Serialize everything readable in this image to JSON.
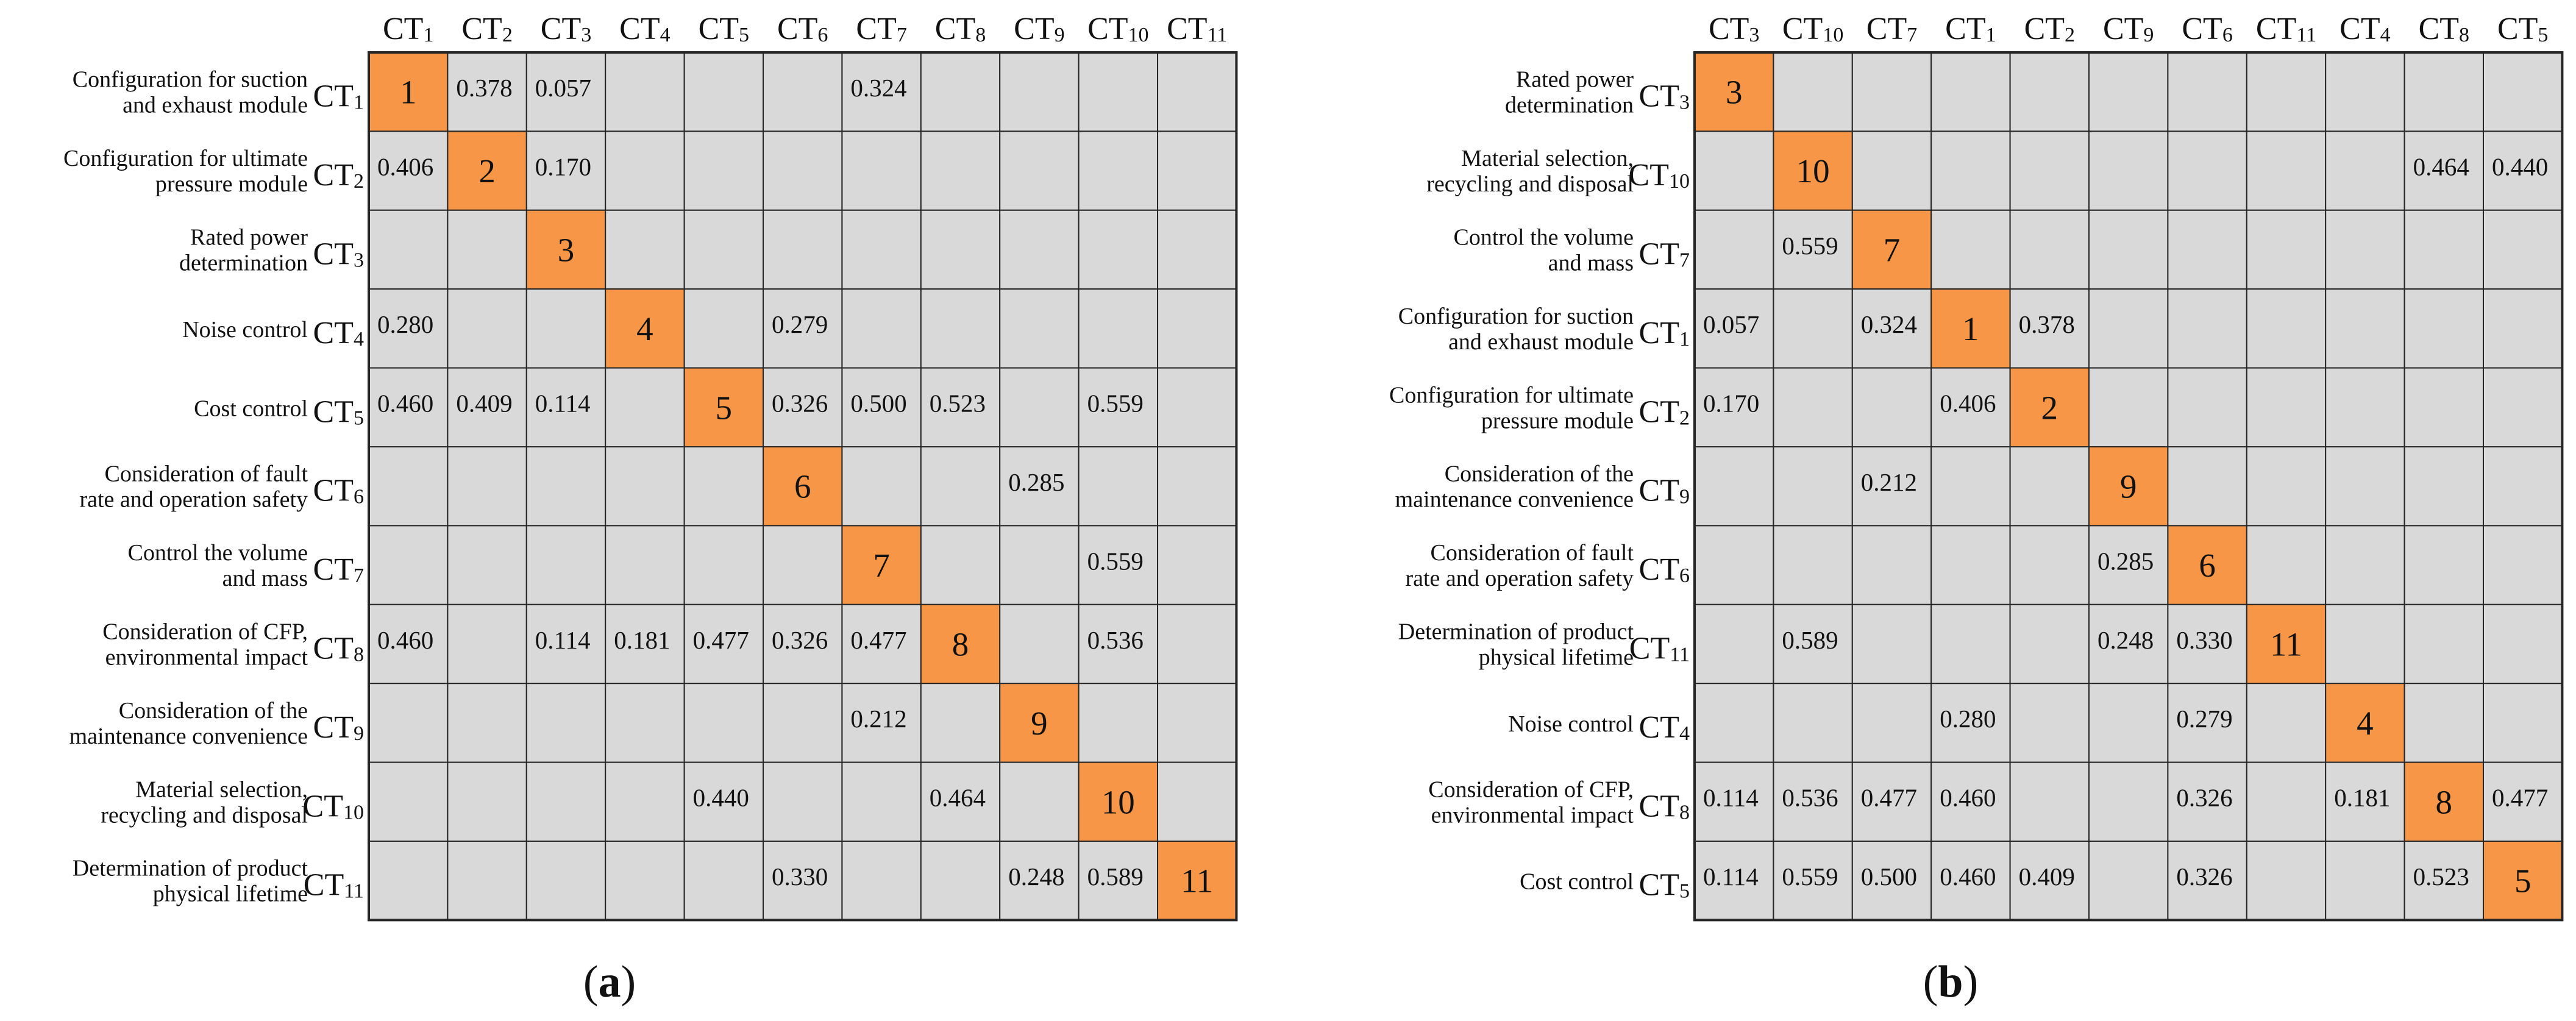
{
  "colors": {
    "cell_fill": "#d9d9d9",
    "diagonal_fill": "#f79646",
    "grid_line": "#262626",
    "text": "#111111"
  },
  "panels": [
    {
      "caption_open": "(",
      "caption_letter": "a",
      "caption_close": ")",
      "order": [
        {
          "id": "CT",
          "sub": "1",
          "label": [
            "Configuration for suction",
            "and exhaust module"
          ]
        },
        {
          "id": "CT",
          "sub": "2",
          "label": [
            "Configuration for ultimate",
            "pressure module"
          ]
        },
        {
          "id": "CT",
          "sub": "3",
          "label": [
            "Rated power",
            "determination"
          ]
        },
        {
          "id": "CT",
          "sub": "4",
          "label": [
            "Noise control"
          ]
        },
        {
          "id": "CT",
          "sub": "5",
          "label": [
            "Cost control"
          ]
        },
        {
          "id": "CT",
          "sub": "6",
          "label": [
            "Consideration of fault",
            "rate and operation safety"
          ]
        },
        {
          "id": "CT",
          "sub": "7",
          "label": [
            "Control the volume",
            "and mass"
          ]
        },
        {
          "id": "CT",
          "sub": "8",
          "label": [
            "Consideration of CFP,",
            "environmental impact"
          ]
        },
        {
          "id": "CT",
          "sub": "9",
          "label": [
            "Consideration of the",
            "maintenance convenience"
          ]
        },
        {
          "id": "CT",
          "sub": "10",
          "label": [
            "Material selection,",
            "recycling and disposal"
          ]
        },
        {
          "id": "CT",
          "sub": "11",
          "label": [
            "Determination of product",
            "physical lifetime"
          ]
        }
      ],
      "matrix": [
        [
          "1",
          "0.378",
          "0.057",
          "",
          "",
          "",
          "0.324",
          "",
          "",
          "",
          ""
        ],
        [
          "0.406",
          "2",
          "0.170",
          "",
          "",
          "",
          "",
          "",
          "",
          "",
          ""
        ],
        [
          "",
          "",
          "3",
          "",
          "",
          "",
          "",
          "",
          "",
          "",
          ""
        ],
        [
          "0.280",
          "",
          "",
          "4",
          "",
          "0.279",
          "",
          "",
          "",
          "",
          ""
        ],
        [
          "0.460",
          "0.409",
          "0.114",
          "",
          "5",
          "0.326",
          "0.500",
          "0.523",
          "",
          "0.559",
          ""
        ],
        [
          "",
          "",
          "",
          "",
          "",
          "6",
          "",
          "",
          "0.285",
          "",
          ""
        ],
        [
          "",
          "",
          "",
          "",
          "",
          "",
          "7",
          "",
          "",
          "0.559",
          ""
        ],
        [
          "0.460",
          "",
          "0.114",
          "0.181",
          "0.477",
          "0.326",
          "0.477",
          "8",
          "",
          "0.536",
          ""
        ],
        [
          "",
          "",
          "",
          "",
          "",
          "",
          "0.212",
          "",
          "9",
          "",
          ""
        ],
        [
          "",
          "",
          "",
          "",
          "0.440",
          "",
          "",
          "0.464",
          "",
          "10",
          ""
        ],
        [
          "",
          "",
          "",
          "",
          "",
          "0.330",
          "",
          "",
          "0.248",
          "0.589",
          "11"
        ]
      ]
    },
    {
      "caption_open": "(",
      "caption_letter": "b",
      "caption_close": ")",
      "order": [
        {
          "id": "CT",
          "sub": "3",
          "label": [
            "Rated power",
            "determination"
          ]
        },
        {
          "id": "CT",
          "sub": "10",
          "label": [
            "Material selection,",
            "recycling and disposal"
          ]
        },
        {
          "id": "CT",
          "sub": "7",
          "label": [
            "Control the volume",
            "and mass"
          ]
        },
        {
          "id": "CT",
          "sub": "1",
          "label": [
            "Configuration for suction",
            "and exhaust module"
          ]
        },
        {
          "id": "CT",
          "sub": "2",
          "label": [
            "Configuration for ultimate",
            "pressure module"
          ]
        },
        {
          "id": "CT",
          "sub": "9",
          "label": [
            "Consideration of the",
            "maintenance convenience"
          ]
        },
        {
          "id": "CT",
          "sub": "6",
          "label": [
            "Consideration of fault",
            "rate and operation safety"
          ]
        },
        {
          "id": "CT",
          "sub": "11",
          "label": [
            "Determination of product",
            "physical lifetime"
          ]
        },
        {
          "id": "CT",
          "sub": "4",
          "label": [
            "Noise control"
          ]
        },
        {
          "id": "CT",
          "sub": "8",
          "label": [
            "Consideration of CFP,",
            "environmental impact"
          ]
        },
        {
          "id": "CT",
          "sub": "5",
          "label": [
            "Cost control"
          ]
        }
      ],
      "matrix": [
        [
          "3",
          "",
          "",
          "",
          "",
          "",
          "",
          "",
          "",
          "",
          ""
        ],
        [
          "",
          "10",
          "",
          "",
          "",
          "",
          "",
          "",
          "",
          "0.464",
          "0.440"
        ],
        [
          "",
          "0.559",
          "7",
          "",
          "",
          "",
          "",
          "",
          "",
          "",
          ""
        ],
        [
          "0.057",
          "",
          "0.324",
          "1",
          "0.378",
          "",
          "",
          "",
          "",
          "",
          ""
        ],
        [
          "0.170",
          "",
          "",
          "0.406",
          "2",
          "",
          "",
          "",
          "",
          "",
          ""
        ],
        [
          "",
          "",
          "0.212",
          "",
          "",
          "9",
          "",
          "",
          "",
          "",
          ""
        ],
        [
          "",
          "",
          "",
          "",
          "",
          "0.285",
          "6",
          "",
          "",
          "",
          ""
        ],
        [
          "",
          "0.589",
          "",
          "",
          "",
          "0.248",
          "0.330",
          "11",
          "",
          "",
          ""
        ],
        [
          "",
          "",
          "",
          "0.280",
          "",
          "",
          "0.279",
          "",
          "4",
          "",
          ""
        ],
        [
          "0.114",
          "0.536",
          "0.477",
          "0.460",
          "",
          "",
          "0.326",
          "",
          "0.181",
          "8",
          "0.477"
        ],
        [
          "0.114",
          "0.559",
          "0.500",
          "0.460",
          "0.409",
          "",
          "0.326",
          "",
          "",
          "0.523",
          "5"
        ]
      ]
    }
  ]
}
